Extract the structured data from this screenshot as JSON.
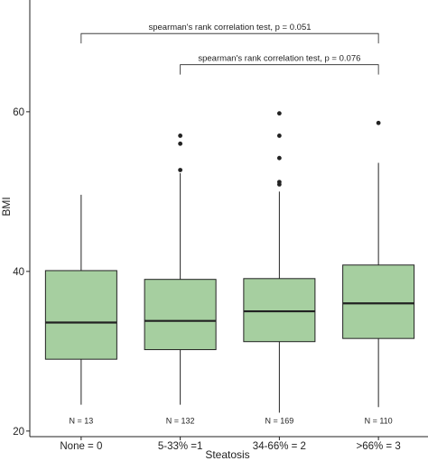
{
  "chart_data": {
    "type": "boxplot",
    "xlabel": "Steatosis",
    "ylabel": "BMI",
    "ylim": [
      19.3,
      74
    ],
    "yticks": [
      20,
      40,
      60
    ],
    "grid": false,
    "colors": {
      "box_fill": "#a6cfa0",
      "outline": "#222222",
      "background": "#ffffff"
    },
    "categories": [
      "None = 0",
      "5-33% =1",
      "34-66% = 2",
      ">66% = 3"
    ],
    "groups": [
      {
        "label": "None = 0",
        "n_label": "N = 13",
        "whisker_low": 23.3,
        "q1": 29.0,
        "median": 33.6,
        "q3": 40.1,
        "whisker_high": 49.6,
        "outliers": []
      },
      {
        "label": "5-33% =1",
        "n_label": "N = 132",
        "whisker_low": 23.3,
        "q1": 30.2,
        "median": 33.8,
        "q3": 39.0,
        "whisker_high": 52.3,
        "outliers": [
          52.7,
          56.0,
          57.0
        ]
      },
      {
        "label": "34-66% = 2",
        "n_label": "N = 169",
        "whisker_low": 22.3,
        "q1": 31.2,
        "median": 35.0,
        "q3": 39.1,
        "whisker_high": 50.0,
        "outliers": [
          50.9,
          51.2,
          54.2,
          57.0,
          59.8
        ]
      },
      {
        "label": ">66% = 3",
        "n_label": "N = 110",
        "whisker_low": 23.0,
        "q1": 31.6,
        "median": 36.0,
        "q3": 40.8,
        "whisker_high": 53.6,
        "outliers": [
          58.6
        ]
      }
    ],
    "comparisons": [
      {
        "from": 0,
        "to": 3,
        "text": "spearman's rank correlation test, p = 0.051"
      },
      {
        "from": 1,
        "to": 3,
        "text": "spearman's rank correlation test, p = 0.076"
      }
    ]
  }
}
